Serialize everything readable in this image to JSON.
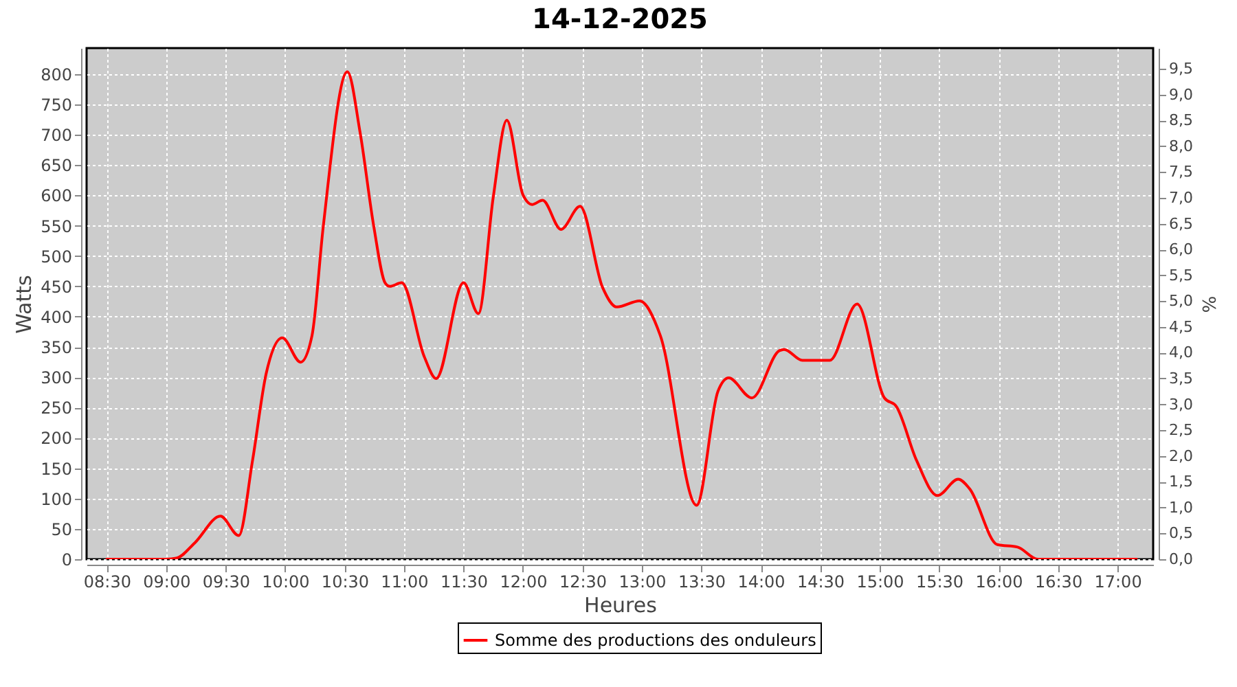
{
  "chart_data": {
    "type": "line",
    "title": "14-12-2025",
    "xlabel": "Heures",
    "ylabel": "Watts",
    "y2label": "%",
    "x": [
      8.5,
      9.0,
      9.09,
      9.24,
      9.456,
      9.61,
      9.725,
      9.84,
      9.976,
      10.13,
      10.226,
      10.32,
      10.523,
      10.63,
      10.746,
      10.84,
      10.88,
      10.98,
      11.17,
      11.27,
      11.5,
      11.625,
      11.75,
      11.864,
      12.0,
      12.076,
      12.165,
      12.32,
      12.48,
      12.67,
      12.79,
      12.98,
      13.155,
      13.46,
      13.64,
      13.73,
      13.925,
      14.157,
      14.196,
      14.35,
      14.58,
      14.81,
      15.04,
      15.14,
      15.31,
      15.486,
      15.66,
      15.757,
      15.99,
      16.16,
      16.33,
      16.45,
      17.16
    ],
    "series": [
      {
        "name": "Somme des productions des onduleurs",
        "color": "#ff0000",
        "values": [
          0,
          0,
          2,
          27,
          71,
          39,
          162,
          306,
          365,
          325,
          369,
          548,
          804,
          704,
          548,
          456,
          450,
          456,
          334,
          298,
          456,
          405,
          597,
          724,
          601,
          585,
          592,
          544,
          582,
          448,
          416,
          426,
          369,
          89,
          277,
          299,
          266,
          344,
          346,
          328,
          328,
          421,
          266,
          252,
          163,
          105,
          132,
          116,
          24,
          20,
          0,
          0,
          0
        ]
      }
    ],
    "xlim": [
      8.33,
      17.3
    ],
    "xticks": [
      {
        "value": 8.5,
        "label": "08:30"
      },
      {
        "value": 9,
        "label": "09:00"
      },
      {
        "value": 9.5,
        "label": "09:30"
      },
      {
        "value": 10,
        "label": "10:00"
      },
      {
        "value": 10.5,
        "label": "10:30"
      },
      {
        "value": 11,
        "label": "11:00"
      },
      {
        "value": 11.5,
        "label": "11:30"
      },
      {
        "value": 12,
        "label": "12:00"
      },
      {
        "value": 12.5,
        "label": "12:30"
      },
      {
        "value": 13,
        "label": "13:00"
      },
      {
        "value": 13.5,
        "label": "13:30"
      },
      {
        "value": 14,
        "label": "14:00"
      },
      {
        "value": 14.5,
        "label": "14:30"
      },
      {
        "value": 15,
        "label": "15:00"
      },
      {
        "value": 15.5,
        "label": "15:30"
      },
      {
        "value": 16,
        "label": "16:00"
      },
      {
        "value": 16.5,
        "label": "16:30"
      },
      {
        "value": 17,
        "label": "17:00"
      }
    ],
    "ylim": [
      0,
      843
    ],
    "yticks": [
      0,
      50,
      100,
      150,
      200,
      250,
      300,
      350,
      400,
      450,
      500,
      550,
      600,
      650,
      700,
      750,
      800
    ],
    "y2lim": [
      0,
      9.9
    ],
    "y2ticks": [
      {
        "value": 0,
        "label": "0,0"
      },
      {
        "value": 0.5,
        "label": "0,5"
      },
      {
        "value": 1,
        "label": "1,0"
      },
      {
        "value": 1.5,
        "label": "1,5"
      },
      {
        "value": 2,
        "label": "2,0"
      },
      {
        "value": 2.5,
        "label": "2,5"
      },
      {
        "value": 3,
        "label": "3,0"
      },
      {
        "value": 3.5,
        "label": "3,5"
      },
      {
        "value": 4,
        "label": "4,0"
      },
      {
        "value": 4.5,
        "label": "4,5"
      },
      {
        "value": 5,
        "label": "5,0"
      },
      {
        "value": 5.5,
        "label": "5,5"
      },
      {
        "value": 6,
        "label": "6,0"
      },
      {
        "value": 6.5,
        "label": "6,5"
      },
      {
        "value": 7,
        "label": "7,0"
      },
      {
        "value": 7.5,
        "label": "7,5"
      },
      {
        "value": 8,
        "label": "8,0"
      },
      {
        "value": 8.5,
        "label": "8,5"
      },
      {
        "value": 9,
        "label": "9,0"
      },
      {
        "value": 9.5,
        "label": "9,5"
      }
    ],
    "grid": true,
    "legend": "bottom",
    "marker": "none",
    "line_style": "solid"
  }
}
